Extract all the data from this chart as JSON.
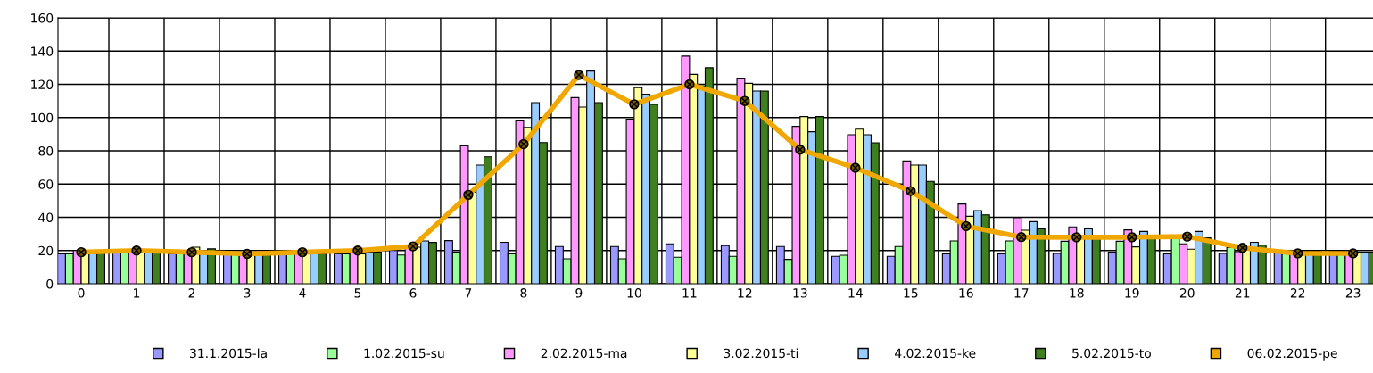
{
  "chart_data": {
    "type": "bar",
    "categories": [
      "0",
      "1",
      "2",
      "3",
      "4",
      "5",
      "6",
      "7",
      "8",
      "9",
      "10",
      "11",
      "12",
      "13",
      "14",
      "15",
      "16",
      "17",
      "18",
      "19",
      "20",
      "21",
      "22",
      "23"
    ],
    "series": [
      {
        "name": "31.1.2015-la",
        "color": "#9999ff",
        "values": [
          18,
          19,
          18,
          18,
          18,
          18,
          20,
          26,
          25,
          22.4,
          22.4,
          24,
          23,
          22.4,
          16.5,
          16.5,
          18,
          18,
          18.3,
          19,
          18,
          18.3,
          19,
          19.6
        ]
      },
      {
        "name": "1.02.2015-su",
        "color": "#99ff99",
        "values": [
          18,
          19,
          19,
          18,
          18,
          18,
          17.3,
          19,
          18,
          15,
          15,
          16,
          16.5,
          14.7,
          17.2,
          22.4,
          25.8,
          25.8,
          25.6,
          25.6,
          28.4,
          21.8,
          18.3,
          19.6
        ]
      },
      {
        "name": "2.02.2015-ma",
        "color": "#ff99ff",
        "values": [
          20,
          19,
          18,
          17,
          18,
          19,
          22,
          83,
          98,
          112,
          99,
          137,
          123.7,
          94.7,
          89.7,
          73.9,
          48,
          39.7,
          34.2,
          32.4,
          24,
          19.3,
          18,
          19.6
        ]
      },
      {
        "name": "3.02.2015-ti",
        "color": "#ffff99",
        "values": [
          19,
          19,
          22,
          18,
          18,
          18,
          22,
          55,
          94,
          106.3,
          118,
          126,
          120.6,
          100.6,
          93,
          71.4,
          40.6,
          32.2,
          27.6,
          22.2,
          20.8,
          20.4,
          19.6,
          19
        ]
      },
      {
        "name": "4.02.2015-ke",
        "color": "#99ccff",
        "values": [
          18,
          19,
          19,
          18,
          18,
          19,
          25.8,
          71.4,
          109,
          128,
          114,
          119,
          116,
          91.5,
          89.7,
          71.4,
          44,
          37.4,
          33,
          31.5,
          31.5,
          25,
          19.6,
          19
        ]
      },
      {
        "name": "5.02.2015-to",
        "color": "#3f7f1f",
        "values": [
          19,
          19,
          21,
          18,
          18,
          19,
          24.9,
          76.4,
          85,
          109,
          108,
          130,
          116,
          100.6,
          84.8,
          61.6,
          41.5,
          33,
          27.6,
          27.6,
          27.6,
          23.3,
          19.6,
          19
        ]
      },
      {
        "name": "06.02.2015-pe",
        "color": "#f0a800",
        "type": "line",
        "marker": "circle",
        "values": [
          19,
          20,
          19,
          18,
          19,
          20,
          22.5,
          53.5,
          84,
          125.6,
          108,
          120,
          110,
          80.7,
          69.8,
          55.8,
          34.7,
          28.1,
          28,
          28,
          28.4,
          21.6,
          18.3,
          18.3
        ]
      }
    ],
    "ylim": [
      0,
      160
    ],
    "yticks": [
      0,
      20,
      40,
      60,
      80,
      100,
      120,
      140,
      160
    ],
    "grid": true,
    "legend": "bottom"
  }
}
